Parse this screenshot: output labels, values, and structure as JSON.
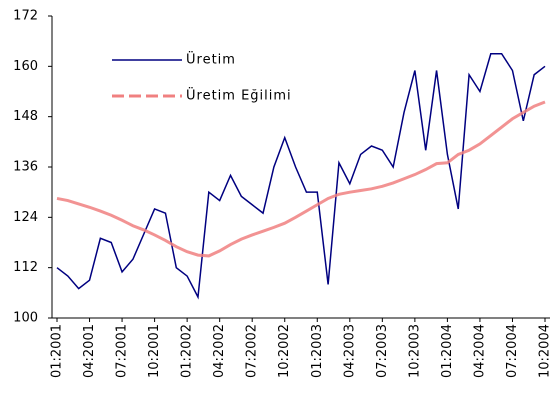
{
  "chart_data": {
    "type": "line",
    "categories": [
      "01:2001",
      null,
      null,
      "04:2001",
      null,
      null,
      "07:2001",
      null,
      null,
      "10:2001",
      null,
      null,
      "01:2002",
      null,
      null,
      "04:2002",
      null,
      null,
      "07:2002",
      null,
      null,
      "10:2002",
      null,
      null,
      "01:2003",
      null,
      null,
      "04:2003",
      null,
      null,
      "07:2003",
      null,
      null,
      "10:2003",
      null,
      null,
      "01:2004",
      null,
      null,
      "04:2004",
      null,
      null,
      "07:2004",
      null,
      null,
      "10:2004"
    ],
    "series": [
      {
        "name": "Üretim",
        "color": "#000080",
        "values": [
          112,
          110,
          107,
          109,
          119,
          118,
          111,
          114,
          120,
          126,
          125,
          112,
          110,
          105,
          130,
          128,
          134,
          129,
          127,
          125,
          136,
          143,
          136,
          130,
          130,
          108,
          137,
          132,
          139,
          141,
          140,
          136,
          149,
          159,
          140,
          159,
          139,
          126,
          158,
          154,
          163,
          163,
          159,
          147,
          158,
          160
        ]
      },
      {
        "name": "Üretim Eğilimi",
        "color": "#f08080",
        "values": [
          128.5,
          128,
          127.2,
          126.4,
          125.5,
          124.5,
          123.3,
          122,
          121,
          119.8,
          118.5,
          117,
          115.8,
          115,
          114.8,
          116,
          117.5,
          118.8,
          119.8,
          120.7,
          121.6,
          122.6,
          124,
          125.5,
          127,
          128.5,
          129.5,
          130,
          130.4,
          130.8,
          131.4,
          132.2,
          133.2,
          134.2,
          135.4,
          136.8,
          137,
          139,
          140,
          141.5,
          143.5,
          145.5,
          147.5,
          149,
          150.5,
          151.5
        ]
      }
    ],
    "ylim": [
      100,
      172
    ],
    "yticks": [
      100,
      112,
      124,
      136,
      148,
      160,
      172
    ],
    "grid": false
  }
}
